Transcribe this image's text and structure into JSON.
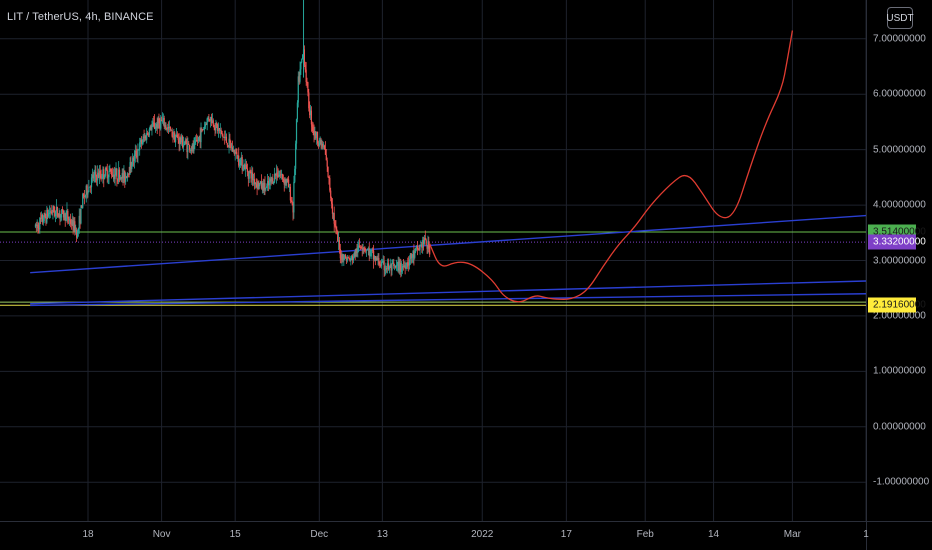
{
  "header": {
    "symbol_title": "LIT / TetherUS, 4h, BINANCE",
    "currency_label": "USDT"
  },
  "colors": {
    "background": "#000000",
    "grid": "#1e222d",
    "candle_up": "#26a69a",
    "candle_down": "#ef5350",
    "projection": "#e03c31",
    "trendline": "#2a3fd1",
    "level_green": "#6bbf4e",
    "level_yellow": "#e8e04a",
    "badge_green": "#4caf50",
    "badge_purple": "#7e3fc7",
    "badge_yellow": "#ffeb3b"
  },
  "chart_data": {
    "type": "candlestick",
    "y_axis": {
      "min": -1.7,
      "max": 7.7,
      "ticks": [
        "7.00000000",
        "6.00000000",
        "5.00000000",
        "4.00000000",
        "3.00000000",
        "2.00000000",
        "1.00000000",
        "0.00000000",
        "-1.00000000"
      ],
      "tick_values": [
        7,
        6,
        5,
        4,
        3,
        2,
        1,
        0,
        -1
      ]
    },
    "x_axis": {
      "labels": [
        "18",
        "Nov",
        "15",
        "Dec",
        "13",
        "2022",
        "17",
        "Feb",
        "14",
        "Mar",
        "1"
      ],
      "dates": [
        "2021-10-18",
        "2021-11-01",
        "2021-11-15",
        "2021-12-01",
        "2021-12-13",
        "2022-01-01",
        "2022-01-17",
        "2022-02-01",
        "2022-02-14",
        "2022-03-01",
        "2022-03-15"
      ]
    },
    "price_path": [
      [
        "2021-10-08",
        3.6
      ],
      [
        "2021-10-11",
        3.9
      ],
      [
        "2021-10-14",
        3.8
      ],
      [
        "2021-10-16",
        3.5
      ],
      [
        "2021-10-17",
        4.1
      ],
      [
        "2021-10-19",
        4.5
      ],
      [
        "2021-10-22",
        4.6
      ],
      [
        "2021-10-25",
        4.5
      ],
      [
        "2021-10-28",
        5.1
      ],
      [
        "2021-10-30",
        5.4
      ],
      [
        "2021-11-01",
        5.5
      ],
      [
        "2021-11-04",
        5.2
      ],
      [
        "2021-11-07",
        5.0
      ],
      [
        "2021-11-10",
        5.6
      ],
      [
        "2021-11-13",
        5.2
      ],
      [
        "2021-11-16",
        4.8
      ],
      [
        "2021-11-19",
        4.4
      ],
      [
        "2021-11-21",
        4.3
      ],
      [
        "2021-11-23",
        4.6
      ],
      [
        "2021-11-25",
        4.4
      ],
      [
        "2021-11-26",
        3.95
      ],
      [
        "2021-11-27",
        6.2
      ],
      [
        "2021-11-28",
        6.8
      ],
      [
        "2021-11-29",
        5.8
      ],
      [
        "2021-11-30",
        5.3
      ],
      [
        "2021-12-02",
        5.0
      ],
      [
        "2021-12-04",
        3.6
      ],
      [
        "2021-12-05",
        3.1
      ],
      [
        "2021-12-07",
        3.0
      ],
      [
        "2021-12-09",
        3.3
      ],
      [
        "2021-12-11",
        3.1
      ],
      [
        "2021-12-13",
        2.9
      ],
      [
        "2021-12-15",
        2.85
      ],
      [
        "2021-12-17",
        2.9
      ],
      [
        "2021-12-19",
        3.1
      ],
      [
        "2021-12-21",
        3.35
      ],
      [
        "2021-12-22",
        3.2
      ]
    ],
    "series": [
      {
        "name": "",
        "type": "line",
        "points": [
          [
            "2021-12-22",
            3.3
          ],
          [
            "2021-12-24",
            2.85
          ],
          [
            "2021-12-27",
            2.98
          ],
          [
            "2021-12-30",
            2.95
          ],
          [
            "2022-01-03",
            2.65
          ],
          [
            "2022-01-05",
            2.35
          ],
          [
            "2022-01-08",
            2.22
          ],
          [
            "2022-01-11",
            2.38
          ],
          [
            "2022-01-13",
            2.33
          ],
          [
            "2022-01-15",
            2.3
          ],
          [
            "2022-01-18",
            2.3
          ],
          [
            "2022-01-21",
            2.45
          ],
          [
            "2022-01-24",
            2.9
          ],
          [
            "2022-01-27",
            3.3
          ],
          [
            "2022-01-30",
            3.6
          ],
          [
            "2022-02-02",
            4.0
          ],
          [
            "2022-02-06",
            4.4
          ],
          [
            "2022-02-09",
            4.6
          ],
          [
            "2022-02-12",
            4.2
          ],
          [
            "2022-02-15",
            3.75
          ],
          [
            "2022-02-18",
            3.8
          ],
          [
            "2022-02-21",
            4.7
          ],
          [
            "2022-02-24",
            5.5
          ],
          [
            "2022-02-27",
            6.1
          ],
          [
            "2022-02-28",
            6.6
          ],
          [
            "2022-03-01",
            7.15
          ]
        ]
      }
    ],
    "trendlines": [
      {
        "color": "#2a3fd1",
        "from": [
          "2021-10-07",
          2.78
        ],
        "to": [
          "2022-03-15",
          3.81
        ]
      },
      {
        "color": "#2a3fd1",
        "from": [
          "2021-10-07",
          2.22
        ],
        "to": [
          "2022-03-15",
          2.63
        ]
      },
      {
        "color": "#2a3fd1",
        "from": [
          "2021-10-07",
          2.19
        ],
        "to": [
          "2022-03-15",
          2.4
        ]
      }
    ],
    "horizontal_levels": [
      {
        "value": 3.514,
        "color": "#6bbf4e",
        "style": "solid",
        "label": "3.51400000",
        "badge": "#4caf50",
        "text": "#1a1a1a"
      },
      {
        "value": 3.332,
        "color": "#7e3fc7",
        "style": "dotted",
        "label": "3.33200000",
        "badge": "#7e3fc7",
        "text": "#ffffff"
      },
      {
        "value": 2.1916,
        "color": "#e8e04a",
        "style": "solid",
        "label": "2.19160000",
        "badge": "#ffeb3b",
        "text": "#1a1a1a"
      },
      {
        "value": 2.25,
        "color": "#9ccc65",
        "style": "solid",
        "label": "",
        "badge": "",
        "text": ""
      }
    ],
    "grid": true,
    "legend": "none"
  }
}
